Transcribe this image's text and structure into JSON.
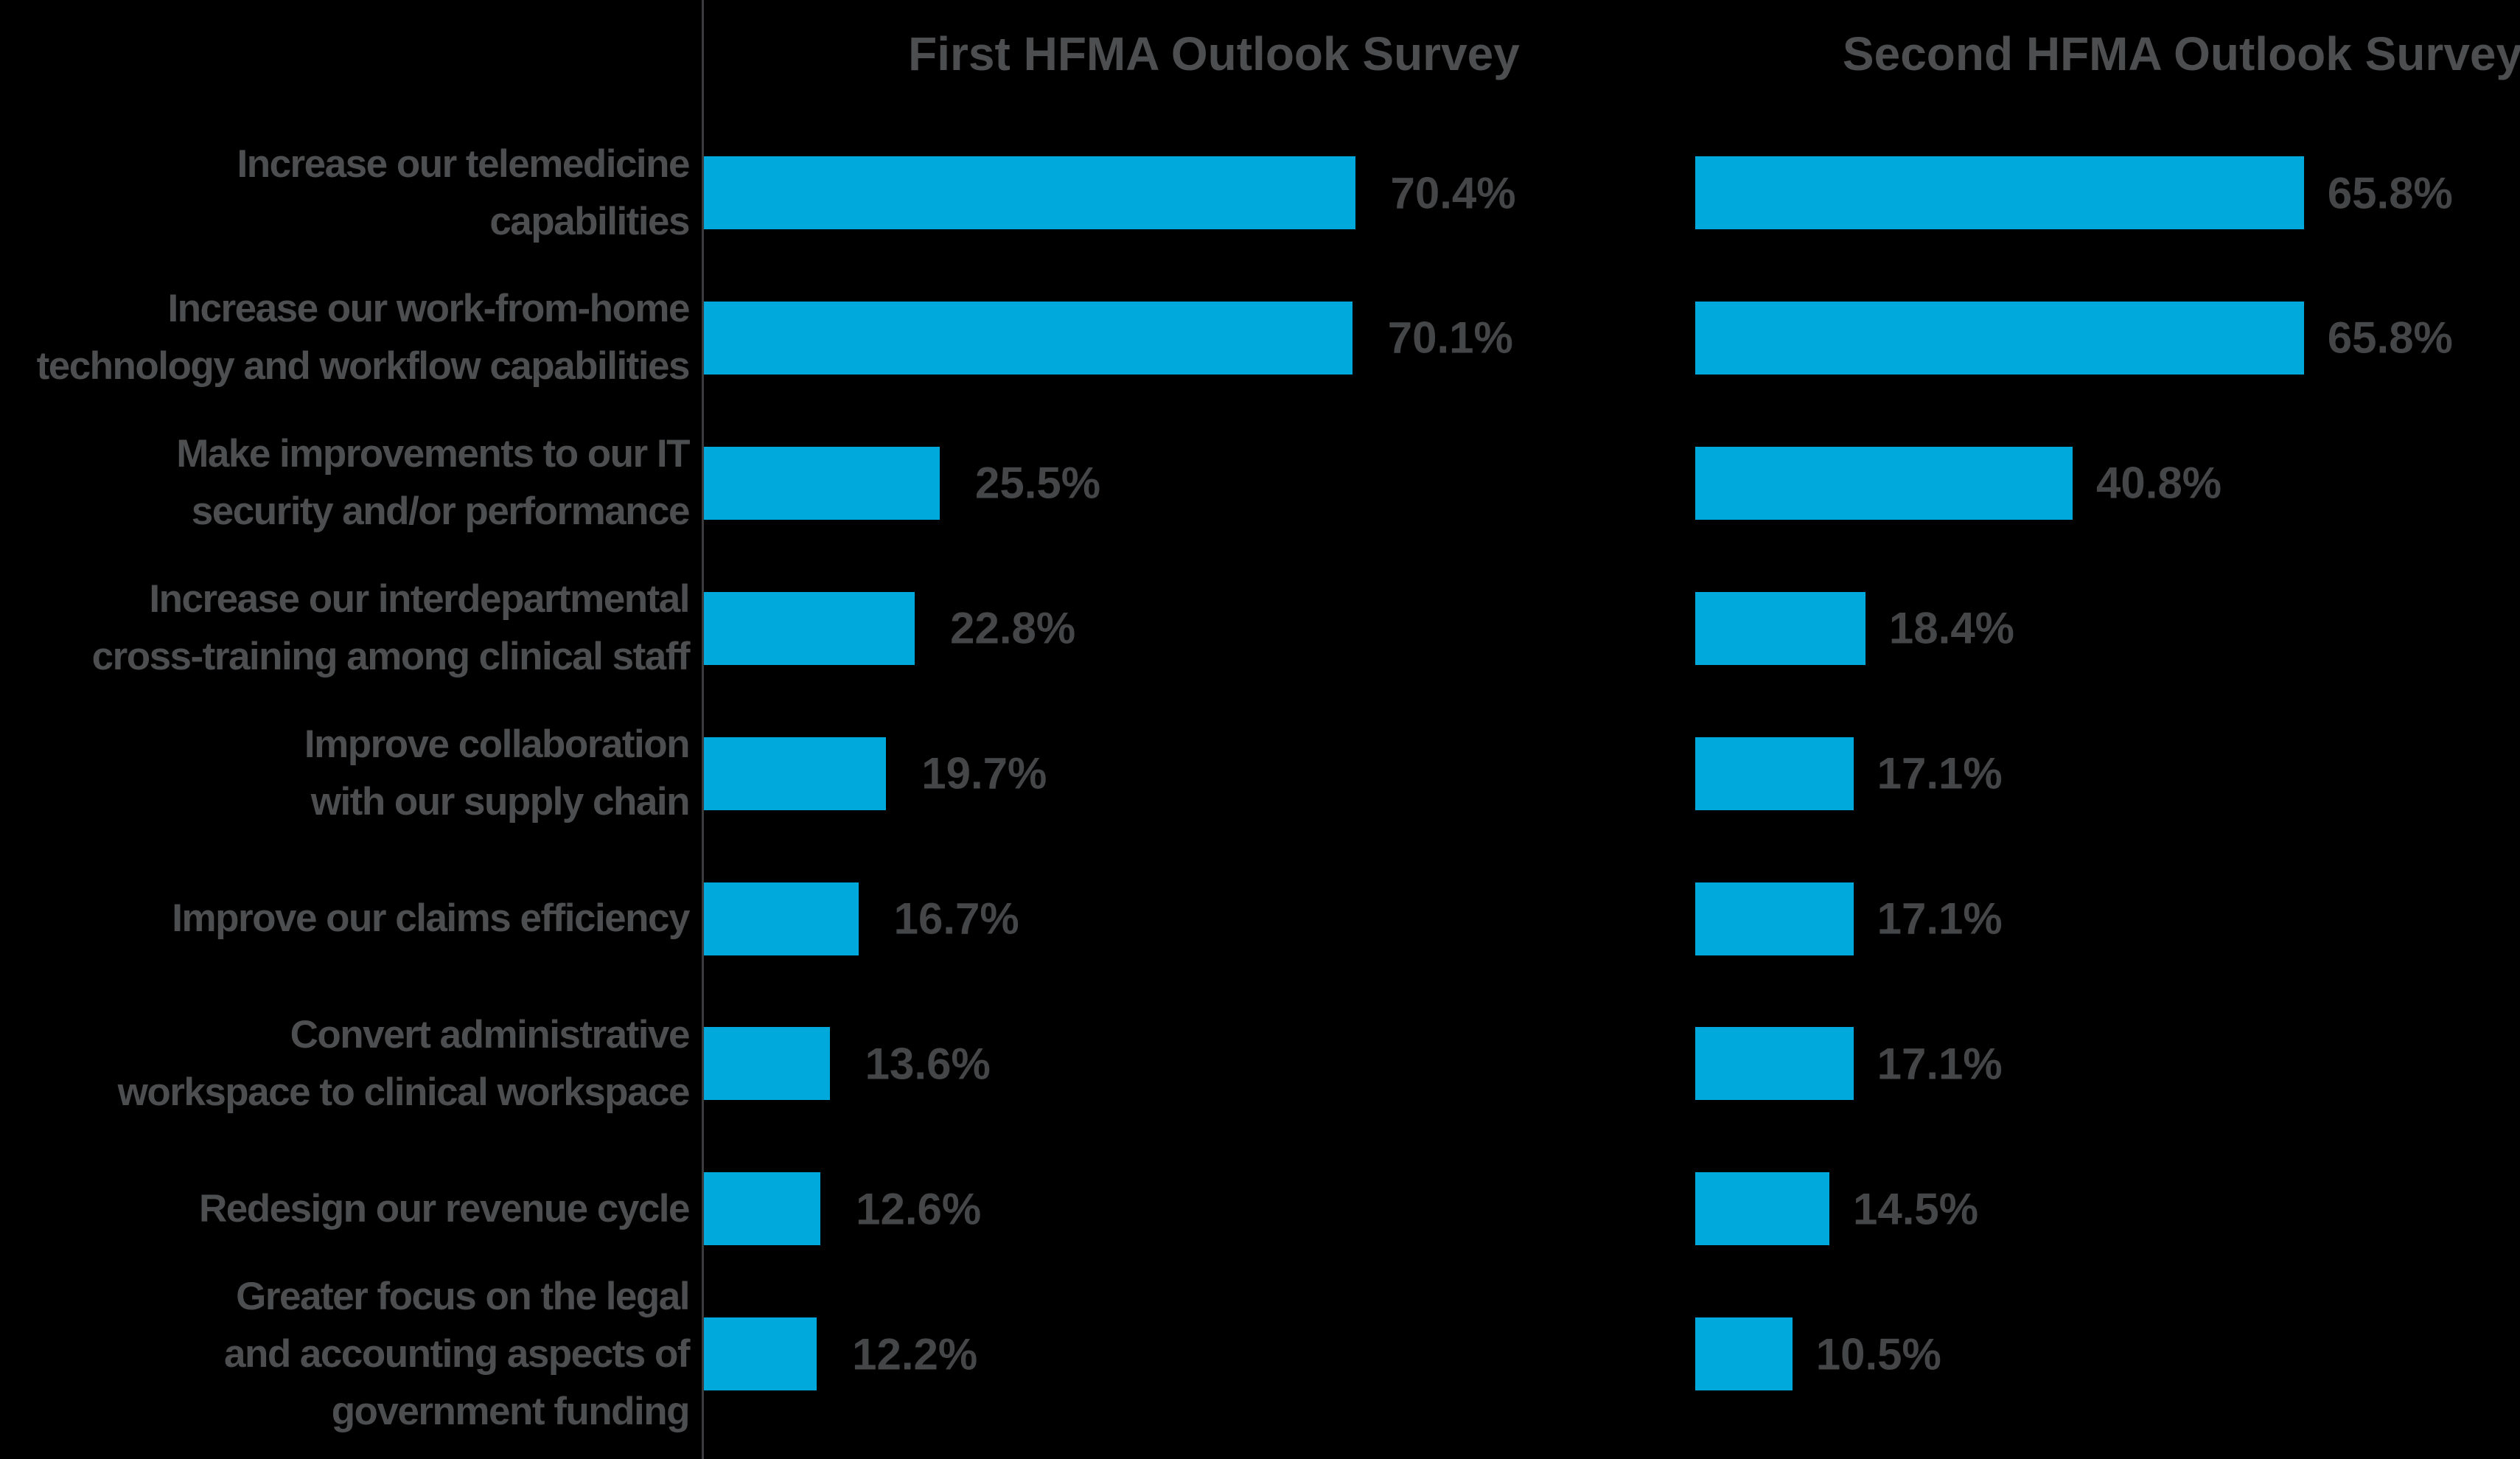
{
  "headers": {
    "first": "First HFMA Outlook Survey",
    "second": "Second HFMA Outlook Survey"
  },
  "rows": [
    {
      "label": "Increase our telemedicine\ncapabilities",
      "first_value": 70.4,
      "first_label": "70.4%",
      "second_value": 65.8,
      "second_label": "65.8%"
    },
    {
      "label": "Increase our work-from-home\ntechnology and workflow capabilities",
      "first_value": 70.1,
      "first_label": "70.1%",
      "second_value": 65.8,
      "second_label": "65.8%"
    },
    {
      "label": "Make improvements to our IT\nsecurity and/or performance",
      "first_value": 25.5,
      "first_label": "25.5%",
      "second_value": 40.8,
      "second_label": "40.8%"
    },
    {
      "label": "Increase our interdepartmental\ncross-training among clinical staff",
      "first_value": 22.8,
      "first_label": "22.8%",
      "second_value": 18.4,
      "second_label": "18.4%"
    },
    {
      "label": "Improve collaboration\nwith our supply chain",
      "first_value": 19.7,
      "first_label": "19.7%",
      "second_value": 17.1,
      "second_label": "17.1%"
    },
    {
      "label": "Improve our claims efficiency",
      "first_value": 16.7,
      "first_label": "16.7%",
      "second_value": 17.1,
      "second_label": "17.1%"
    },
    {
      "label": "Convert administrative\nworkspace to clinical workspace",
      "first_value": 13.6,
      "first_label": "13.6%",
      "second_value": 17.1,
      "second_label": "17.1%"
    },
    {
      "label": "Redesign our revenue cycle",
      "first_value": 12.6,
      "first_label": "12.6%",
      "second_value": 14.5,
      "second_label": "14.5%"
    },
    {
      "label": "Greater focus on the legal\nand accounting aspects of\ngovernment funding",
      "first_value": 12.2,
      "first_label": "12.2%",
      "second_value": 10.5,
      "second_label": "10.5%"
    }
  ],
  "chart_data": {
    "type": "bar",
    "orientation": "horizontal",
    "title": "",
    "xlabel": "",
    "ylabel": "",
    "unit": "percent",
    "xlim": [
      0,
      75
    ],
    "grid": false,
    "legend_position": "column-headers-top",
    "categories": [
      "Increase our telemedicine capabilities",
      "Increase our work-from-home technology and workflow capabilities",
      "Make improvements to our IT security and/or performance",
      "Increase our interdepartmental cross-training among clinical staff",
      "Improve collaboration with our supply chain",
      "Improve our claims efficiency",
      "Convert administrative workspace to clinical workspace",
      "Redesign our revenue cycle",
      "Greater focus on the legal and accounting aspects of government funding"
    ],
    "series": [
      {
        "name": "First HFMA Outlook Survey",
        "values": [
          70.4,
          70.1,
          25.5,
          22.8,
          19.7,
          16.7,
          13.6,
          12.6,
          12.2
        ]
      },
      {
        "name": "Second HFMA Outlook Survey",
        "values": [
          65.8,
          65.8,
          40.8,
          18.4,
          17.1,
          17.1,
          17.1,
          14.5,
          10.5
        ]
      }
    ],
    "colors": {
      "bar": "#00A9DC",
      "label_text": "#4D4E50",
      "value_text": "#454648",
      "axis_line": "#3C3C3E",
      "background": "#000000"
    }
  }
}
